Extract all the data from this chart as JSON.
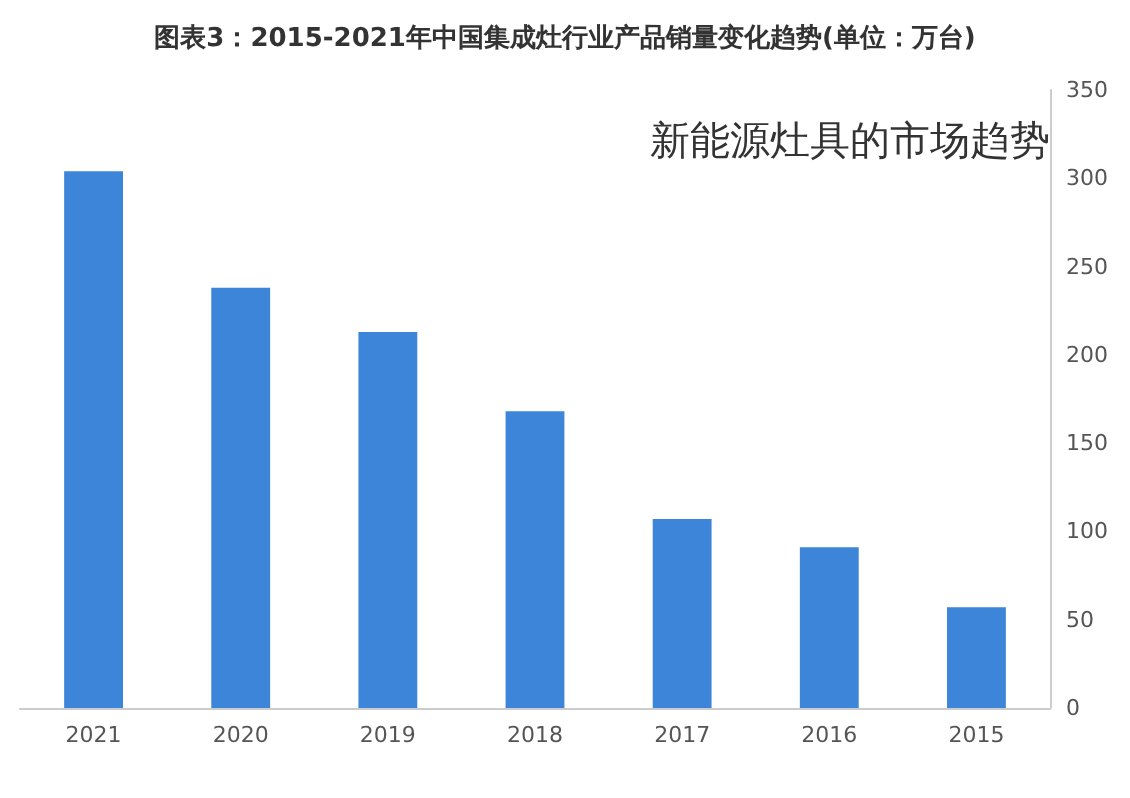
{
  "chart_data": {
    "type": "bar",
    "title": "图表3：2015-2021年中国集成灶行业产品销量变化趋势(单位：万台)",
    "annotations": [
      "新能源灶具的市场趋势"
    ],
    "categories": [
      "2021",
      "2020",
      "2019",
      "2018",
      "2017",
      "2016",
      "2015"
    ],
    "values": [
      304,
      238,
      213,
      168,
      107,
      91,
      57
    ],
    "color": "#3d85d8",
    "ylim": [
      0,
      350
    ],
    "yticks": [
      0,
      50,
      100,
      150,
      200,
      250,
      300,
      350
    ],
    "grid": false
  }
}
